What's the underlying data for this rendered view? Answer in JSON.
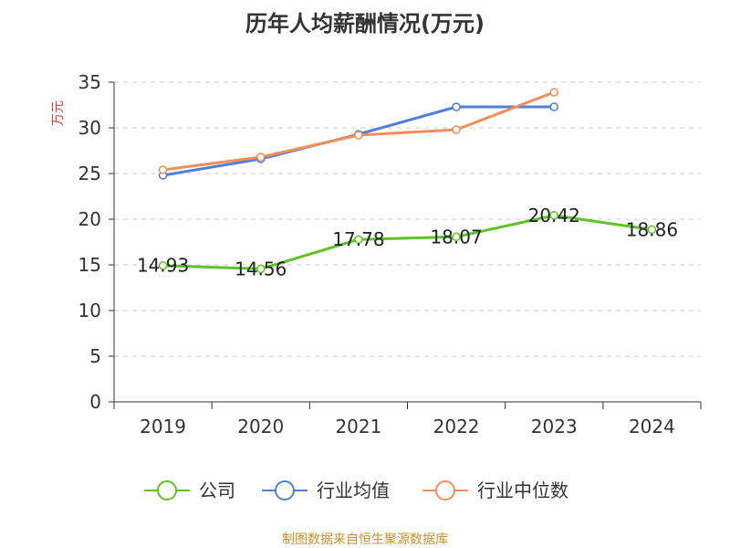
{
  "chart_data": {
    "type": "line",
    "title": "历年人均薪酬情况(万元)",
    "ylabel": "万元",
    "xlabel": "",
    "categories": [
      "2019",
      "2020",
      "2021",
      "2022",
      "2023",
      "2024"
    ],
    "ylim": [
      0,
      35
    ],
    "yticks": [
      0,
      5,
      10,
      15,
      20,
      25,
      30,
      35
    ],
    "grid": true,
    "legend_position": "bottom",
    "series": [
      {
        "name": "公司",
        "color": "#5dc422",
        "values": [
          14.93,
          14.56,
          17.78,
          18.07,
          20.42,
          18.86
        ],
        "data_labels": [
          "14.93",
          "14.56",
          "17.78",
          "18.07",
          "20.42",
          "18.86"
        ]
      },
      {
        "name": "行业均值",
        "color": "#4f7fdb",
        "values": [
          24.8,
          26.6,
          29.3,
          32.3,
          32.3,
          null
        ]
      },
      {
        "name": "行业中位数",
        "color": "#f38d5a",
        "values": [
          25.4,
          26.8,
          29.2,
          29.8,
          33.9,
          null
        ]
      }
    ],
    "ylabel_color": "#e03a3a"
  },
  "source": {
    "text": "制图数据来自恒生聚源数据库",
    "color": "#c8902a"
  }
}
